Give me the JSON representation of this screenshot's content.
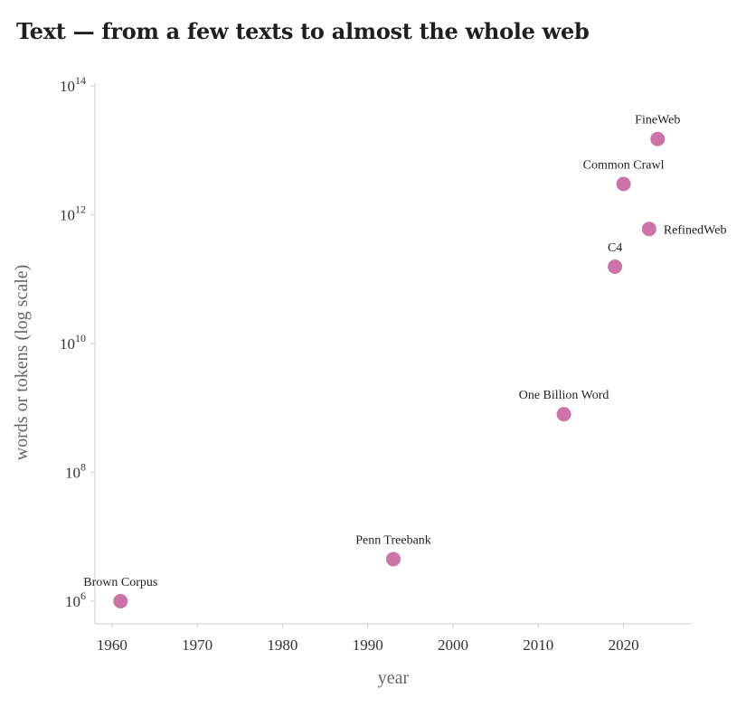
{
  "chart_data": {
    "type": "scatter",
    "title": "Text — from a few texts to almost the whole web",
    "xlabel": "year",
    "ylabel": "words or tokens (log scale)",
    "yscale": "log",
    "xlim": [
      1958,
      2028
    ],
    "ylim": [
      500000,
      100000000000000
    ],
    "x_ticks": [
      1960,
      1970,
      1980,
      1990,
      2000,
      2010,
      2020
    ],
    "y_ticks": [
      {
        "value": 1000000,
        "base": "10",
        "exp": "6"
      },
      {
        "value": 100000000,
        "base": "10",
        "exp": "8"
      },
      {
        "value": 10000000000,
        "base": "10",
        "exp": "10"
      },
      {
        "value": 1000000000000,
        "base": "10",
        "exp": "12"
      },
      {
        "value": 100000000000000,
        "base": "10",
        "exp": "14"
      }
    ],
    "color": "#cc74a8",
    "points": [
      {
        "label": "Brown Corpus",
        "x": 1961,
        "y": 1000000,
        "label_pos": "above"
      },
      {
        "label": "Penn Treebank",
        "x": 1993,
        "y": 4500000,
        "label_pos": "above"
      },
      {
        "label": "One Billion Word",
        "x": 2013,
        "y": 800000000,
        "label_pos": "above"
      },
      {
        "label": "C4",
        "x": 2019,
        "y": 156000000000,
        "label_pos": "above"
      },
      {
        "label": "RefinedWeb",
        "x": 2023,
        "y": 600000000000,
        "label_pos": "right"
      },
      {
        "label": "Common Crawl",
        "x": 2020,
        "y": 3000000000000,
        "label_pos": "above"
      },
      {
        "label": "FineWeb",
        "x": 2024,
        "y": 15000000000000,
        "label_pos": "above"
      }
    ]
  }
}
